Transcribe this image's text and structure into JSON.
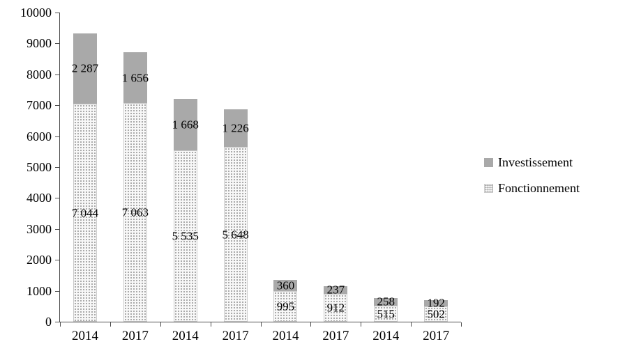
{
  "chart_data": {
    "type": "bar",
    "stacked": true,
    "title": "",
    "xlabel": "",
    "ylabel": "",
    "categories": [
      "2014",
      "2017",
      "2014",
      "2017",
      "2014",
      "2017",
      "2014",
      "2017"
    ],
    "series": [
      {
        "name": "Fonctionnement",
        "style": "dotted",
        "values": [
          7044,
          7063,
          5535,
          5648,
          995,
          912,
          515,
          502
        ],
        "labels": [
          "7 044",
          "7 063",
          "5 535",
          "5 648",
          "995",
          "912",
          "515",
          "502"
        ]
      },
      {
        "name": "Investissement",
        "style": "solid",
        "values": [
          2287,
          1656,
          1668,
          1226,
          360,
          237,
          258,
          192
        ],
        "labels": [
          "2 287",
          "1 656",
          "1 668",
          "1 226",
          "360",
          "237",
          "258",
          "192"
        ]
      }
    ],
    "ylim": [
      0,
      10000
    ],
    "ytick_step": 1000,
    "yticks": [
      "0",
      "1000",
      "2000",
      "3000",
      "4000",
      "5000",
      "6000",
      "7000",
      "8000",
      "9000",
      "10000"
    ],
    "grid": false,
    "legend_position": "right",
    "legend": [
      {
        "label": "Investissement",
        "swatch": "solid"
      },
      {
        "label": "Fonctionnement",
        "swatch": "dotted"
      }
    ],
    "colors": {
      "investissement": "#a9a9a9",
      "fonctionnement_fill": "#f8f8f8",
      "fonctionnement_dot": "#909090",
      "axis": "#4d4d4d",
      "text": "#000000"
    }
  }
}
